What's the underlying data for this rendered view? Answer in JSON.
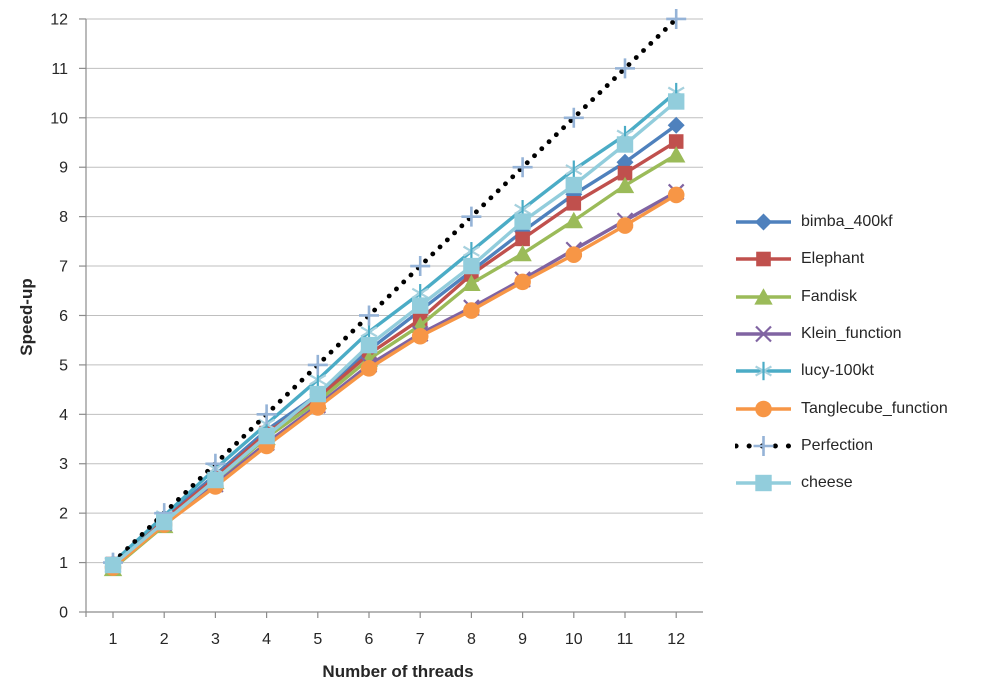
{
  "chart_data": {
    "type": "line",
    "title": "",
    "xlabel": "Number of threads",
    "ylabel": "Speed-up",
    "x": [
      1,
      2,
      3,
      4,
      5,
      6,
      7,
      8,
      9,
      10,
      11,
      12
    ],
    "x_ticks": [
      "1",
      "2",
      "3",
      "4",
      "5",
      "6",
      "7",
      "8",
      "9",
      "10",
      "11",
      "12"
    ],
    "y_ticks": [
      "0",
      "1",
      "2",
      "3",
      "4",
      "5",
      "6",
      "7",
      "8",
      "9",
      "10",
      "11",
      "12"
    ],
    "xlim": [
      1,
      12
    ],
    "ylim": [
      0,
      12
    ],
    "grid": "horizontal",
    "legend_position": "right",
    "gridline_color": "#BFBFBF",
    "axis_color": "#8C8C8C",
    "series": [
      {
        "name": "bimba_400kf",
        "color": "#4F81BD",
        "marker": "diamond",
        "values": [
          0.98,
          1.9,
          2.78,
          3.68,
          4.4,
          5.3,
          6.1,
          6.9,
          7.7,
          8.45,
          9.1,
          9.85
        ]
      },
      {
        "name": "Elephant",
        "color": "#C0504D",
        "marker": "square",
        "values": [
          0.97,
          1.87,
          2.72,
          3.62,
          4.33,
          5.22,
          5.92,
          6.83,
          7.55,
          8.27,
          8.88,
          9.52
        ]
      },
      {
        "name": "Fandisk",
        "color": "#9BBB59",
        "marker": "triangle",
        "values": [
          0.88,
          1.75,
          2.64,
          3.53,
          4.26,
          5.12,
          5.8,
          6.65,
          7.25,
          7.92,
          8.63,
          9.25
        ]
      },
      {
        "name": "Klein_function",
        "color": "#8064A2",
        "marker": "x",
        "values": [
          0.95,
          1.8,
          2.58,
          3.42,
          4.18,
          5.0,
          5.63,
          6.16,
          6.73,
          7.33,
          7.92,
          8.5
        ]
      },
      {
        "name": "lucy-100kt",
        "color": "#4BACC6",
        "marker": "asterisk",
        "marker_accent": "#A6D1DE",
        "values": [
          1.0,
          1.95,
          2.9,
          3.8,
          4.7,
          5.67,
          6.45,
          7.3,
          8.15,
          8.95,
          9.65,
          10.52
        ]
      },
      {
        "name": "Tanglecube_function",
        "color": "#F79646",
        "marker": "circle",
        "values": [
          0.9,
          1.77,
          2.54,
          3.36,
          4.14,
          4.93,
          5.58,
          6.1,
          6.68,
          7.23,
          7.82,
          8.44
        ]
      },
      {
        "name": "Perfection",
        "color": "#000000",
        "marker": "plus",
        "marker_color": "#95B3D7",
        "line_style": "dotted",
        "values": [
          1,
          2,
          3,
          4,
          5,
          6,
          7,
          8,
          9,
          10,
          11,
          12
        ]
      },
      {
        "name": "cheese",
        "color": "#92CDDC",
        "marker": "big-square",
        "values": [
          0.95,
          1.82,
          2.67,
          3.56,
          4.41,
          5.4,
          6.2,
          7.0,
          7.9,
          8.64,
          9.46,
          10.33
        ]
      }
    ]
  }
}
